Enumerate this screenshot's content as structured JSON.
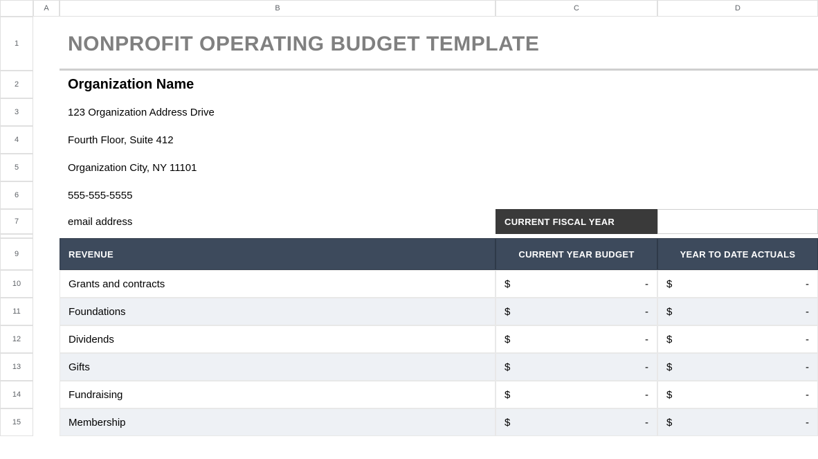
{
  "columns": [
    "A",
    "B",
    "C",
    "D"
  ],
  "rows": [
    "1",
    "2",
    "3",
    "4",
    "5",
    "6",
    "7",
    "",
    "9",
    "10",
    "11",
    "12",
    "13",
    "14",
    "15"
  ],
  "title": "NONPROFIT OPERATING BUDGET TEMPLATE",
  "org": {
    "name": "Organization Name",
    "address1": "123 Organization Address Drive",
    "address2": "Fourth Floor, Suite 412",
    "citystate": "Organization City, NY  11101",
    "phone": "555-555-5555",
    "email": "email address"
  },
  "fiscal_year_label": "CURRENT FISCAL YEAR",
  "fiscal_year_value": "",
  "table": {
    "section_header": "REVENUE",
    "col_budget": "CURRENT YEAR BUDGET",
    "col_actuals": "YEAR TO DATE ACTUALS",
    "rows": [
      {
        "label": "Grants and contracts",
        "budget": "-",
        "actuals": "-",
        "alt": false
      },
      {
        "label": "Foundations",
        "budget": "-",
        "actuals": "-",
        "alt": true
      },
      {
        "label": "Dividends",
        "budget": "-",
        "actuals": "-",
        "alt": false
      },
      {
        "label": "Gifts",
        "budget": "-",
        "actuals": "-",
        "alt": true
      },
      {
        "label": "Fundraising",
        "budget": "-",
        "actuals": "-",
        "alt": false
      },
      {
        "label": "Membership",
        "budget": "-",
        "actuals": "-",
        "alt": true
      }
    ]
  },
  "currency_symbol": "$",
  "colors": {
    "title_text": "#808080",
    "title_rule": "#cfcfcf",
    "section_header_bg": "#3d4a5c",
    "fiscal_label_bg": "#3a3a3a",
    "alt_row_bg": "#eef1f5",
    "grid_border": "#e0e0e0"
  }
}
